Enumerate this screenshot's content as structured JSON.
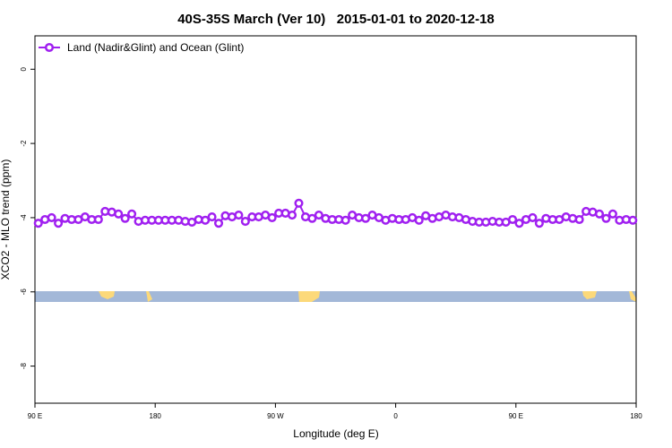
{
  "chart_data": {
    "type": "line",
    "title": "40S-35S March (Ver 10)   2015-01-01 to 2020-12-18",
    "x_label": "Longitude (deg E)",
    "y_label": "XCO2 - MLO trend (ppm)",
    "xlim": [
      90,
      540
    ],
    "ylim": [
      -9.0,
      0.9
    ],
    "xticks": [
      {
        "value": 90,
        "label": "90 E"
      },
      180,
      {
        "value": 270,
        "label": "90 W"
      },
      {
        "value": 360,
        "label": "0"
      },
      {
        "value": 450,
        "label": "90 E"
      },
      {
        "value": 540,
        "label": "180"
      }
    ],
    "yticks": [
      0,
      -2,
      -4,
      -6,
      -8
    ],
    "legend": "top-left",
    "x": [
      92.5,
      97.5,
      102.5,
      107.5,
      112.5,
      117.5,
      122.5,
      127.5,
      132.5,
      137.5,
      142.5,
      147.5,
      152.5,
      157.5,
      162.5,
      167.5,
      172.5,
      177.5,
      182.5,
      187.5,
      192.5,
      197.5,
      202.5,
      207.5,
      212.5,
      217.5,
      222.5,
      227.5,
      232.5,
      237.5,
      242.5,
      247.5,
      252.5,
      257.5,
      262.5,
      267.5,
      272.5,
      277.5,
      282.5,
      287.5,
      292.5,
      297.5,
      302.5,
      307.5,
      312.5,
      317.5,
      322.5,
      327.5,
      332.5,
      337.5,
      342.5,
      347.5,
      352.5,
      357.5,
      362.5,
      367.5,
      372.5,
      377.5,
      382.5,
      387.5,
      392.5,
      397.5,
      402.5,
      407.5,
      412.5,
      417.5,
      422.5,
      427.5,
      432.5,
      437.5,
      442.5,
      447.5,
      452.5,
      457.5,
      462.5,
      467.5,
      472.5,
      477.5,
      482.5,
      487.5,
      492.5,
      497.5,
      502.5,
      507.5,
      512.5,
      517.5,
      522.5,
      527.5,
      532.5,
      537.5
    ],
    "series": [
      {
        "name": "Land (Nadir&Glint) and Ocean (Glint)",
        "color": "#a020f0",
        "values": [
          -4.15,
          -4.05,
          -4.0,
          -4.15,
          -4.02,
          -4.05,
          -4.05,
          -3.98,
          -4.05,
          -4.05,
          -3.83,
          -3.85,
          -3.9,
          -4.02,
          -3.9,
          -4.1,
          -4.07,
          -4.07,
          -4.07,
          -4.07,
          -4.07,
          -4.07,
          -4.1,
          -4.12,
          -4.05,
          -4.07,
          -3.98,
          -4.15,
          -3.95,
          -3.98,
          -3.93,
          -4.1,
          -3.98,
          -3.98,
          -3.93,
          -4.0,
          -3.88,
          -3.88,
          -3.93,
          -3.61,
          -3.98,
          -4.02,
          -3.93,
          -4.02,
          -4.05,
          -4.05,
          -4.07,
          -3.93,
          -4.0,
          -4.02,
          -3.93,
          -4.0,
          -4.07,
          -4.02,
          -4.05,
          -4.05,
          -4.0,
          -4.07,
          -3.95,
          -4.02,
          -3.98,
          -3.93,
          -3.98,
          -4.0,
          -4.05,
          -4.1,
          -4.12,
          -4.12,
          -4.1,
          -4.12,
          -4.12,
          -4.05,
          -4.15,
          -4.05,
          -4.0,
          -4.15,
          -4.02,
          -4.05,
          -4.05,
          -3.98,
          -4.02,
          -4.05,
          -3.83,
          -3.85,
          -3.9,
          -4.02,
          -3.9,
          -4.07,
          -4.05,
          -4.07
        ]
      }
    ]
  }
}
